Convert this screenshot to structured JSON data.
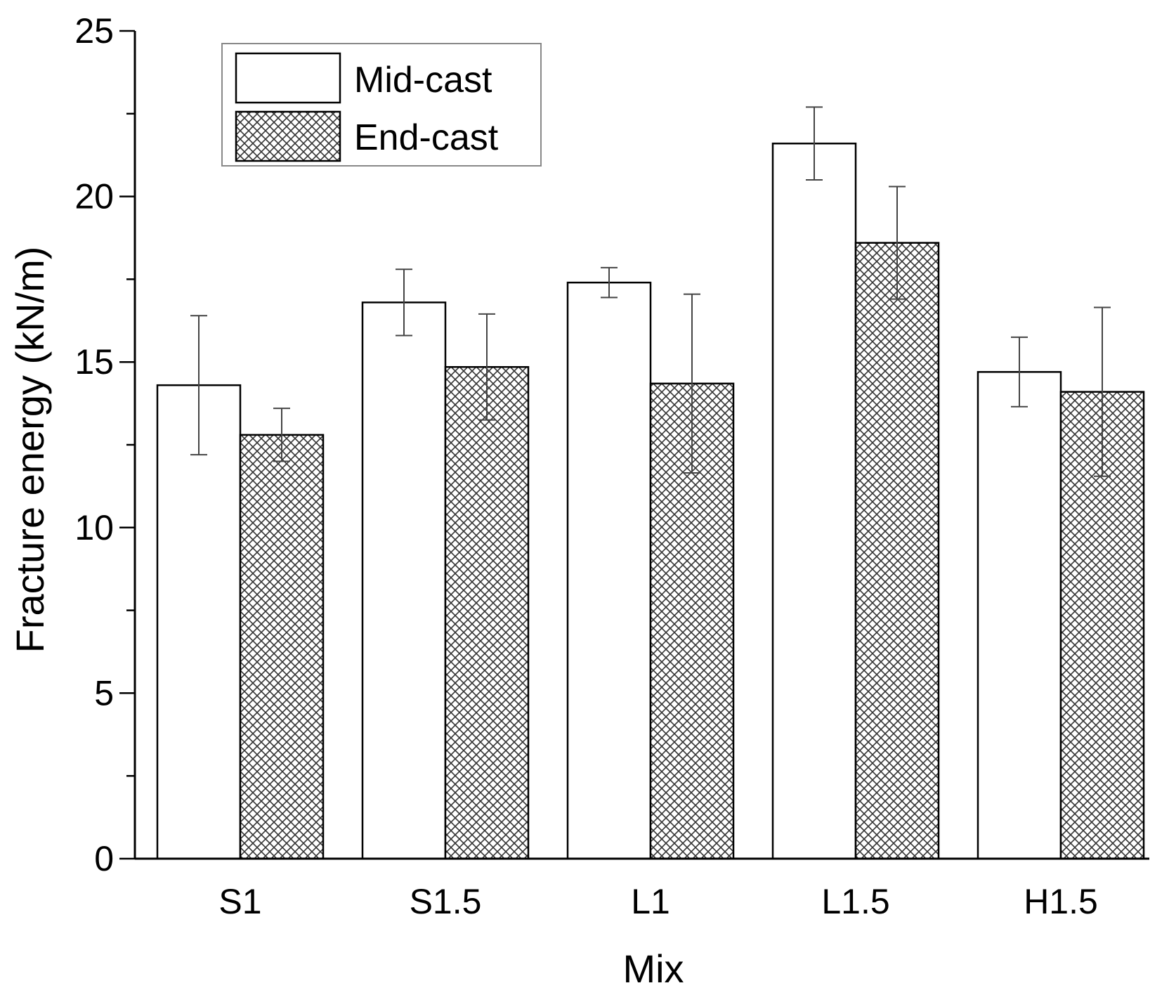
{
  "chart_data": {
    "type": "bar",
    "title": "",
    "xlabel": "Mix",
    "ylabel": "Fracture energy (kN/m)",
    "categories": [
      "S1",
      "S1.5",
      "L1",
      "L1.5",
      "H1.5"
    ],
    "ylim": [
      0,
      25
    ],
    "yticks": [
      0,
      5,
      10,
      15,
      20,
      25
    ],
    "legend_position": "top-left",
    "series": [
      {
        "name": "Mid-cast",
        "pattern": "none",
        "values": [
          14.3,
          16.8,
          17.4,
          21.6,
          14.7
        ],
        "errors": [
          2.1,
          1.0,
          0.45,
          1.1,
          1.05
        ]
      },
      {
        "name": "End-cast",
        "pattern": "crosshatch",
        "values": [
          12.8,
          14.85,
          14.35,
          18.6,
          14.1
        ],
        "errors": [
          0.8,
          1.6,
          2.7,
          1.7,
          2.55
        ]
      }
    ]
  }
}
